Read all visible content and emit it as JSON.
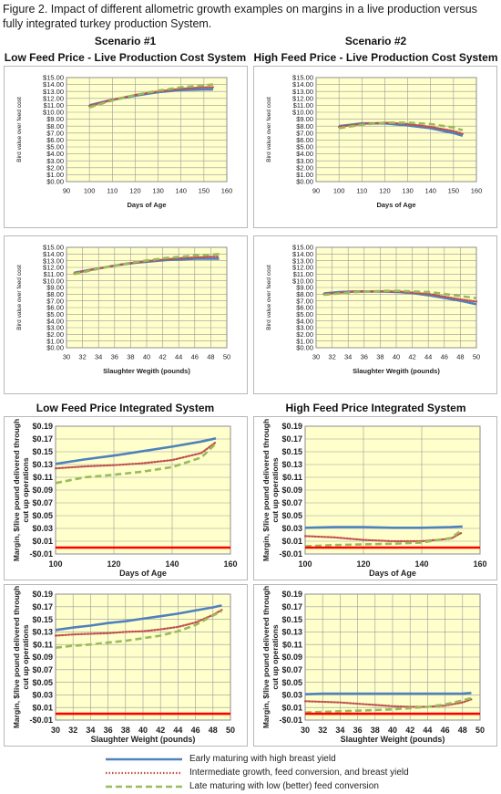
{
  "caption": "Figure 2.  Impact of different allometric growth examples on margins in a live production versus fully integrated turkey production System.",
  "headers": {
    "scenario1": "Scenario #1",
    "scenario2": "Scenario #2",
    "top_left": "Low Feed Price - Live Production Cost System",
    "top_right": "High Feed Price - Live Production Cost System",
    "mid_left": "Low Feed Price Integrated System",
    "mid_right": "High Feed Price Integrated System"
  },
  "colors": {
    "plot_bg": "#ffffcc",
    "early": "#4f81bd",
    "intermediate": "#c0504d",
    "late": "#9bbb59",
    "zero_line": "#ff0000"
  },
  "legend": [
    {
      "label": "Early maturing  with high breast yield",
      "color": "#4f81bd",
      "style": "solid"
    },
    {
      "label": "Intermediate growth, feed conversion, and breast yield",
      "color": "#c0504d",
      "style": "dotted"
    },
    {
      "label": "Late maturing with low (better) feed conversion",
      "color": "#9bbb59",
      "style": "dashed"
    }
  ],
  "chart_data": [
    {
      "type": "line",
      "xlabel": "Days of Age",
      "ylabel": "Bird value over feed cost",
      "x": [
        100,
        110,
        120,
        130,
        140,
        150,
        154
      ],
      "xlim": [
        90,
        160
      ],
      "xticks": [
        "90",
        "100",
        "110",
        "120",
        "130",
        "140",
        "150",
        "160"
      ],
      "ylim": [
        0,
        15
      ],
      "yticks": [
        "$0.00",
        "$1.00",
        "$2.00",
        "$3.00",
        "$4.00",
        "$5.00",
        "$6.00",
        "$7.00",
        "$8.00",
        "$9.00",
        "$10.00",
        "$11.00",
        "$12.00",
        "$13.00",
        "$14.00",
        "$15.00"
      ],
      "series": [
        {
          "values": [
            11.0,
            11.8,
            12.4,
            12.9,
            13.2,
            13.3,
            13.3
          ]
        },
        {
          "values": [
            10.9,
            11.8,
            12.5,
            13.0,
            13.4,
            13.6,
            13.6
          ]
        },
        {
          "values": [
            10.7,
            11.7,
            12.5,
            13.1,
            13.6,
            13.9,
            14.0
          ]
        }
      ]
    },
    {
      "type": "line",
      "xlabel": "Days of Age",
      "ylabel": "Bird value over feed cost",
      "x": [
        100,
        110,
        120,
        130,
        140,
        150,
        154
      ],
      "xlim": [
        90,
        160
      ],
      "xticks": [
        "90",
        "100",
        "110",
        "120",
        "130",
        "140",
        "150",
        "160"
      ],
      "ylim": [
        0,
        15
      ],
      "yticks": [
        "$0.00",
        "$1.00",
        "$2.00",
        "$3.00",
        "$4.00",
        "$5.00",
        "$6.00",
        "$7.00",
        "$8.00",
        "$9.00",
        "$10.00",
        "$11.00",
        "$12.00",
        "$13.00",
        "$14.00",
        "$15.00"
      ],
      "series": [
        {
          "values": [
            8.0,
            8.4,
            8.4,
            8.1,
            7.7,
            7.0,
            6.6
          ]
        },
        {
          "values": [
            7.9,
            8.3,
            8.5,
            8.3,
            7.9,
            7.3,
            6.9
          ]
        },
        {
          "values": [
            7.7,
            8.2,
            8.5,
            8.5,
            8.3,
            7.8,
            7.4
          ]
        }
      ]
    },
    {
      "type": "line",
      "xlabel": "Slaughter Wegith (pounds)",
      "ylabel": "Bird value over feed cost",
      "x": [
        30,
        32,
        34,
        36,
        38,
        40,
        42,
        44,
        46,
        48,
        49
      ],
      "xlim": [
        29,
        50
      ],
      "xticks": [
        "30",
        "32",
        "34",
        "36",
        "38",
        "40",
        "42",
        "44",
        "46",
        "48",
        "50"
      ],
      "ylim": [
        0,
        15
      ],
      "yticks": [
        "$0.00",
        "$1.00",
        "$2.00",
        "$3.00",
        "$4.00",
        "$5.00",
        "$6.00",
        "$7.00",
        "$8.00",
        "$9.00",
        "$10.00",
        "$11.00",
        "$12.00",
        "$13.00",
        "$14.00",
        "$15.00"
      ],
      "series": [
        {
          "values": [
            11.2,
            11.6,
            12.0,
            12.4,
            12.7,
            12.9,
            13.1,
            13.2,
            13.3,
            13.3,
            13.3
          ]
        },
        {
          "values": [
            11.1,
            11.6,
            12.0,
            12.4,
            12.7,
            13.0,
            13.2,
            13.4,
            13.5,
            13.6,
            13.6
          ]
        },
        {
          "values": [
            11.0,
            11.5,
            12.0,
            12.4,
            12.8,
            13.1,
            13.4,
            13.6,
            13.8,
            13.9,
            14.0
          ]
        }
      ]
    },
    {
      "type": "line",
      "xlabel": "Slaughter Wegith (pounds)",
      "ylabel": "Bird value over feed cost",
      "x": [
        30,
        32,
        34,
        36,
        38,
        40,
        42,
        44,
        46,
        48,
        50
      ],
      "xlim": [
        29,
        50
      ],
      "xticks": [
        "30",
        "32",
        "34",
        "36",
        "38",
        "40",
        "42",
        "44",
        "46",
        "48",
        "50"
      ],
      "ylim": [
        0,
        15
      ],
      "yticks": [
        "$0.00",
        "$1.00",
        "$2.00",
        "$3.00",
        "$4.00",
        "$5.00",
        "$6.00",
        "$7.00",
        "$8.00",
        "$9.00",
        "$10.00",
        "$11.00",
        "$12.00",
        "$13.00",
        "$14.00",
        "$15.00"
      ],
      "series": [
        {
          "values": [
            8.1,
            8.3,
            8.4,
            8.4,
            8.4,
            8.3,
            8.1,
            7.8,
            7.4,
            7.0,
            6.5
          ]
        },
        {
          "values": [
            8.0,
            8.2,
            8.4,
            8.4,
            8.4,
            8.4,
            8.2,
            8.0,
            7.6,
            7.2,
            6.9
          ]
        },
        {
          "values": [
            7.9,
            8.1,
            8.3,
            8.4,
            8.5,
            8.5,
            8.4,
            8.3,
            8.0,
            7.7,
            7.4
          ]
        }
      ]
    },
    {
      "type": "line",
      "xlabel": "Days of Age",
      "ylabel": "Margin, $/live pound delivered through cut up operations",
      "x": [
        100,
        110,
        120,
        130,
        140,
        150,
        155
      ],
      "xlim": [
        100,
        160
      ],
      "xticks": [
        "100",
        "120",
        "140",
        "160"
      ],
      "ylim": [
        -0.01,
        0.19
      ],
      "yticks": [
        "-$0.01",
        "$0.01",
        "$0.03",
        "$0.05",
        "$0.07",
        "$0.09",
        "$0.11",
        "$0.13",
        "$0.15",
        "$0.17",
        "$0.19"
      ],
      "series": [
        {
          "values": [
            0.131,
            0.138,
            0.144,
            0.151,
            0.158,
            0.166,
            0.171
          ]
        },
        {
          "values": [
            0.124,
            0.127,
            0.129,
            0.132,
            0.137,
            0.148,
            0.165
          ]
        },
        {
          "values": [
            0.101,
            0.11,
            0.114,
            0.119,
            0.126,
            0.141,
            0.163
          ]
        },
        {
          "values": [
            0,
            0,
            0,
            0,
            0,
            0,
            0
          ],
          "zero": true
        }
      ]
    },
    {
      "type": "line",
      "xlabel": "Days of Age",
      "ylabel": "Margin, $/live pound delivered through cut up operations",
      "x": [
        100,
        110,
        120,
        130,
        140,
        150,
        154
      ],
      "xlim": [
        100,
        160
      ],
      "xticks": [
        "100",
        "120",
        "140",
        "160"
      ],
      "ylim": [
        -0.01,
        0.19
      ],
      "yticks": [
        "-$0.01",
        "$0.01",
        "$0.03",
        "$0.05",
        "$0.07",
        "$0.09",
        "$0.11",
        "$0.13",
        "$0.15",
        "$0.17",
        "$0.19"
      ],
      "series": [
        {
          "values": [
            0.031,
            0.032,
            0.032,
            0.031,
            0.031,
            0.032,
            0.033
          ]
        },
        {
          "values": [
            0.018,
            0.016,
            0.012,
            0.01,
            0.01,
            0.014,
            0.024
          ]
        },
        {
          "values": [
            0.002,
            0.004,
            0.005,
            0.006,
            0.008,
            0.015,
            0.028
          ]
        },
        {
          "values": [
            0,
            0,
            0,
            0,
            0,
            0,
            0
          ],
          "zero": true
        }
      ]
    },
    {
      "type": "line",
      "xlabel": "Slaughter Weight (pounds)",
      "ylabel": "Margin, $/live pound delivered through cut up operations",
      "x": [
        30,
        32,
        34,
        36,
        38,
        40,
        42,
        44,
        46,
        48,
        49
      ],
      "xlim": [
        30,
        50
      ],
      "xticks": [
        "30",
        "32",
        "34",
        "36",
        "38",
        "40",
        "42",
        "44",
        "46",
        "48",
        "50"
      ],
      "ylim": [
        -0.01,
        0.19
      ],
      "yticks": [
        "-$0.01",
        "$0.01",
        "$0.03",
        "$0.05",
        "$0.07",
        "$0.09",
        "$0.11",
        "$0.13",
        "$0.15",
        "$0.17",
        "$0.19"
      ],
      "series": [
        {
          "values": [
            0.133,
            0.137,
            0.14,
            0.144,
            0.147,
            0.151,
            0.155,
            0.159,
            0.164,
            0.169,
            0.172
          ]
        },
        {
          "values": [
            0.124,
            0.126,
            0.127,
            0.128,
            0.13,
            0.131,
            0.134,
            0.138,
            0.145,
            0.157,
            0.165
          ]
        },
        {
          "values": [
            0.105,
            0.108,
            0.11,
            0.113,
            0.116,
            0.12,
            0.124,
            0.131,
            0.141,
            0.156,
            0.163
          ]
        },
        {
          "values": [
            0,
            0,
            0,
            0,
            0,
            0,
            0,
            0,
            0,
            0,
            0
          ],
          "zero": true
        }
      ]
    },
    {
      "type": "line",
      "xlabel": "Slaughter Weight (pounds)",
      "ylabel": "Margin, $/live pound delivered through cut up operations",
      "x": [
        30,
        32,
        34,
        36,
        38,
        40,
        42,
        44,
        46,
        48,
        49
      ],
      "xlim": [
        30,
        50
      ],
      "xticks": [
        "30",
        "32",
        "34",
        "36",
        "38",
        "40",
        "42",
        "44",
        "46",
        "48",
        "50"
      ],
      "ylim": [
        -0.01,
        0.19
      ],
      "yticks": [
        "-$0.01",
        "$0.01",
        "$0.03",
        "$0.05",
        "$0.07",
        "$0.09",
        "$0.11",
        "$0.13",
        "$0.15",
        "$0.17",
        "$0.19"
      ],
      "series": [
        {
          "values": [
            0.031,
            0.032,
            0.032,
            0.032,
            0.032,
            0.032,
            0.032,
            0.032,
            0.032,
            0.032,
            0.033
          ]
        },
        {
          "values": [
            0.02,
            0.019,
            0.018,
            0.016,
            0.014,
            0.012,
            0.011,
            0.011,
            0.013,
            0.018,
            0.023
          ]
        },
        {
          "values": [
            0.002,
            0.003,
            0.004,
            0.005,
            0.006,
            0.007,
            0.009,
            0.011,
            0.015,
            0.021,
            0.025
          ]
        },
        {
          "values": [
            0,
            0,
            0,
            0,
            0,
            0,
            0,
            0,
            0,
            0,
            0
          ],
          "zero": true
        }
      ]
    }
  ]
}
